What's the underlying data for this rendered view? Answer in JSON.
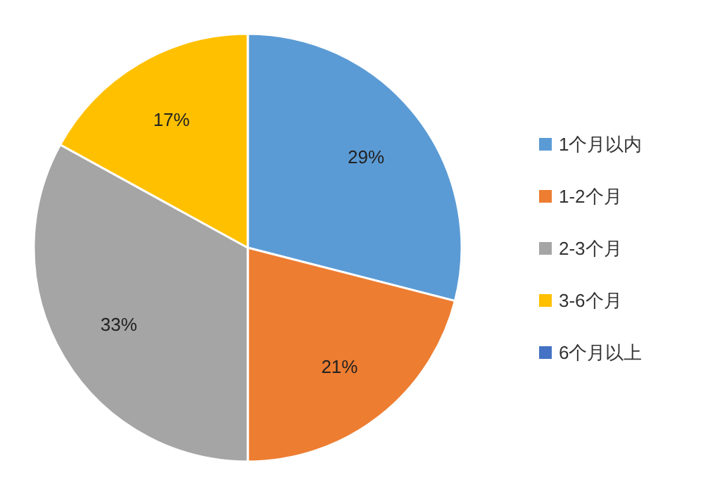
{
  "chart_data": {
    "type": "pie",
    "categories": [
      "1个月以内",
      "1-2个月",
      "2-3个月",
      "3-6个月",
      "6个月以上"
    ],
    "values": [
      29,
      21,
      33,
      17,
      0
    ],
    "colors": [
      "#5b9bd5",
      "#ed7d31",
      "#a5a5a5",
      "#ffc000",
      "#4472c4"
    ],
    "value_labels": [
      "29%",
      "21%",
      "33%",
      "17%",
      null
    ],
    "legend": "right"
  }
}
